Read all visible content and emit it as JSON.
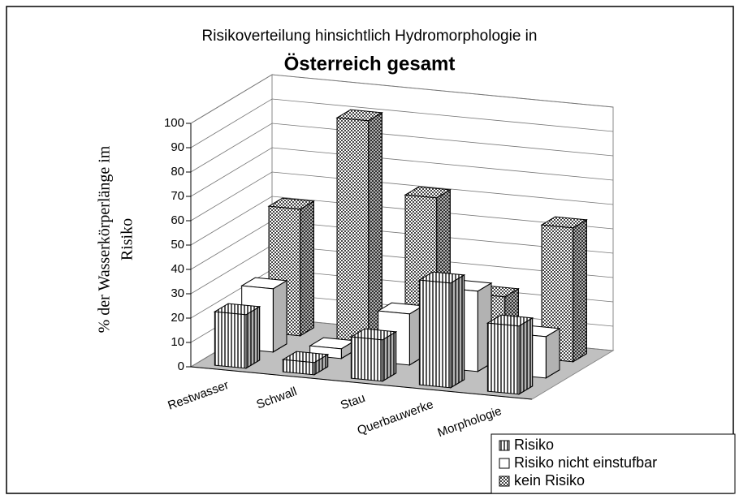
{
  "chart_data": {
    "type": "bar3d",
    "title": "Risikoverteilung hinsichtlich Hydromorphologie in",
    "subtitle": "Österreich gesamt",
    "y_label": [
      "% der Wasserkörperlänge im",
      "Risiko"
    ],
    "categories": [
      "Restwasser",
      "Schwall",
      "Stau",
      "Querbauwerke",
      "Morphologie"
    ],
    "series": [
      {
        "name": "Risiko",
        "pattern": "vertical-stripes",
        "values": [
          22,
          5,
          17,
          43,
          28
        ]
      },
      {
        "name": "Risiko nicht einstufbar",
        "pattern": "plain",
        "values": [
          26,
          4,
          21,
          33,
          17
        ]
      },
      {
        "name": "kein Risiko",
        "pattern": "checkered",
        "values": [
          52,
          91,
          62,
          24,
          55
        ]
      }
    ],
    "ylim": [
      0,
      100
    ],
    "yticks": [
      0,
      10,
      20,
      30,
      40,
      50,
      60,
      70,
      80,
      90,
      100
    ],
    "grid": true,
    "legend": "bottom-right"
  }
}
